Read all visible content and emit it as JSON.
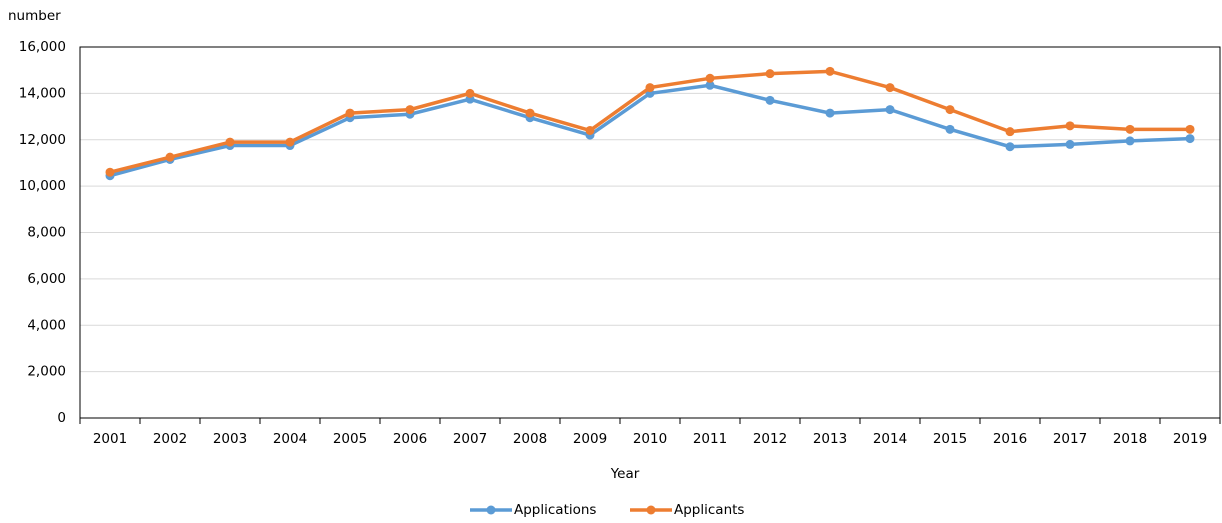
{
  "chart_data": {
    "type": "line",
    "y_label": "number",
    "x_label": "Year",
    "categories": [
      "2001",
      "2002",
      "2003",
      "2004",
      "2005",
      "2006",
      "2007",
      "2008",
      "2009",
      "2010",
      "2011",
      "2012",
      "2013",
      "2014",
      "2015",
      "2016",
      "2017",
      "2018",
      "2019"
    ],
    "series": [
      {
        "name": "Applications",
        "color": "#5b9bd5",
        "values": [
          10450,
          11150,
          11750,
          11750,
          12950,
          13100,
          13750,
          12950,
          12200,
          14000,
          14350,
          13700,
          13150,
          13300,
          12450,
          11700,
          11800,
          11950,
          12050
        ]
      },
      {
        "name": "Applicants",
        "color": "#ed7d31",
        "values": [
          10600,
          11250,
          11900,
          11900,
          13150,
          13300,
          14000,
          13150,
          12400,
          14250,
          14650,
          14850,
          14950,
          14250,
          13300,
          12350,
          12600,
          12450,
          12450
        ]
      }
    ],
    "ylim": [
      0,
      16000
    ],
    "yticks": [
      0,
      {
        "value": 2000,
        "label": "2,000"
      },
      {
        "value": 4000,
        "label": "4,000"
      },
      {
        "value": 6000,
        "label": "6,000"
      },
      {
        "value": 8000,
        "label": "8,000"
      },
      {
        "value": 10000,
        "label": "10,000"
      },
      {
        "value": 12000,
        "label": "12,000"
      },
      {
        "value": 14000,
        "label": "14,000"
      },
      {
        "value": 16000,
        "label": "16,000"
      }
    ],
    "grid": true,
    "legend": "bottom"
  }
}
